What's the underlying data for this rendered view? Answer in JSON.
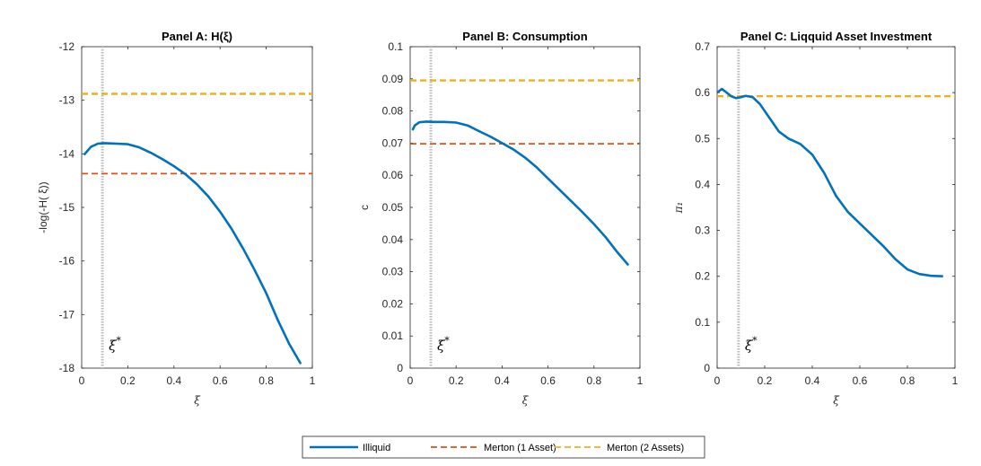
{
  "colors": {
    "illiquid": "#0072BD",
    "merton1": "#D95319",
    "merton2": "#EDB120",
    "marker": "#BDBDBD",
    "axis": "#262626"
  },
  "legend": {
    "position": "bottom-center",
    "entries": [
      {
        "label": "Illiquid",
        "style": "solid",
        "color": "#0072BD"
      },
      {
        "label": "Merton (1 Asset)",
        "style": "dashed",
        "color": "#D95319"
      },
      {
        "label": "Merton (2 Assets)",
        "style": "dashed",
        "color": "#EDB120"
      }
    ]
  },
  "chart_data": [
    {
      "type": "line",
      "title": "Panel A: H(ξ)",
      "xlabel": "ξ",
      "ylabel": "-log(-H( ξ))",
      "xlim": [
        0,
        1
      ],
      "ylim": [
        -18,
        -12
      ],
      "xticks": [
        "0",
        "0.2",
        "0.4",
        "0.6",
        "0.8",
        "1"
      ],
      "yticks": [
        "-18",
        "-17",
        "-16",
        "-15",
        "-14",
        "-13",
        "-12"
      ],
      "xi_star": 0.09,
      "xi_star_label": "ξ*",
      "series": [
        {
          "name": "Illiquid",
          "x": [
            0.01,
            0.02,
            0.04,
            0.07,
            0.1,
            0.15,
            0.2,
            0.25,
            0.3,
            0.35,
            0.4,
            0.45,
            0.5,
            0.55,
            0.6,
            0.65,
            0.7,
            0.75,
            0.8,
            0.85,
            0.9,
            0.95
          ],
          "y": [
            -14.02,
            -13.97,
            -13.87,
            -13.81,
            -13.8,
            -13.81,
            -13.82,
            -13.88,
            -13.98,
            -14.1,
            -14.23,
            -14.38,
            -14.57,
            -14.8,
            -15.08,
            -15.4,
            -15.77,
            -16.17,
            -16.6,
            -17.1,
            -17.55,
            -17.92
          ]
        },
        {
          "name": "Merton (1 Asset)",
          "x": [
            0,
            1
          ],
          "y": [
            -14.37,
            -14.37
          ]
        },
        {
          "name": "Merton (2 Assets)",
          "x": [
            0,
            1
          ],
          "y": [
            -12.88,
            -12.88
          ]
        }
      ]
    },
    {
      "type": "line",
      "title": "Panel B: Consumption",
      "xlabel": "ξ",
      "ylabel": "c",
      "xlim": [
        0,
        1
      ],
      "ylim": [
        0,
        0.1
      ],
      "xticks": [
        "0",
        "0.2",
        "0.4",
        "0.6",
        "0.8",
        "1"
      ],
      "yticks": [
        "0",
        "0.01",
        "0.02",
        "0.03",
        "0.04",
        "0.05",
        "0.06",
        "0.07",
        "0.08",
        "0.09",
        "0.1"
      ],
      "xi_star": 0.09,
      "xi_star_label": "ξ*",
      "series": [
        {
          "name": "Illiquid",
          "x": [
            0.01,
            0.02,
            0.04,
            0.07,
            0.1,
            0.15,
            0.2,
            0.25,
            0.3,
            0.35,
            0.4,
            0.45,
            0.5,
            0.55,
            0.6,
            0.65,
            0.7,
            0.75,
            0.8,
            0.85,
            0.9,
            0.95
          ],
          "y": [
            0.074,
            0.0755,
            0.0765,
            0.0767,
            0.0766,
            0.0766,
            0.0764,
            0.0755,
            0.0737,
            0.072,
            0.07,
            0.068,
            0.0655,
            0.0625,
            0.059,
            0.0555,
            0.052,
            0.0485,
            0.0448,
            0.0408,
            0.0362,
            0.032
          ]
        },
        {
          "name": "Merton (1 Asset)",
          "x": [
            0,
            1
          ],
          "y": [
            0.0698,
            0.0698
          ]
        },
        {
          "name": "Merton (2 Assets)",
          "x": [
            0,
            1
          ],
          "y": [
            0.0895,
            0.0895
          ]
        }
      ]
    },
    {
      "type": "line",
      "title": "Panel C: Liqquid Asset Investment",
      "xlabel": "ξ",
      "ylabel": "π₁",
      "xlim": [
        0,
        1
      ],
      "ylim": [
        0,
        0.7
      ],
      "xticks": [
        "0",
        "0.2",
        "0.4",
        "0.6",
        "0.8",
        "1"
      ],
      "yticks": [
        "0",
        "0.1",
        "0.2",
        "0.3",
        "0.4",
        "0.5",
        "0.6",
        "0.7"
      ],
      "xi_star": 0.09,
      "xi_star_label": "ξ*",
      "series": [
        {
          "name": "Illiquid",
          "x": [
            0.0,
            0.02,
            0.04,
            0.06,
            0.08,
            0.1,
            0.12,
            0.15,
            0.18,
            0.22,
            0.26,
            0.3,
            0.35,
            0.4,
            0.45,
            0.5,
            0.55,
            0.6,
            0.65,
            0.7,
            0.75,
            0.8,
            0.85,
            0.9,
            0.95
          ],
          "y": [
            0.6,
            0.608,
            0.6,
            0.592,
            0.588,
            0.59,
            0.593,
            0.59,
            0.575,
            0.545,
            0.515,
            0.5,
            0.488,
            0.465,
            0.425,
            0.375,
            0.34,
            0.315,
            0.29,
            0.265,
            0.237,
            0.215,
            0.205,
            0.201,
            0.2
          ]
        },
        {
          "name": "Merton (2 Assets)",
          "x": [
            0,
            1
          ],
          "y": [
            0.592,
            0.592
          ]
        }
      ]
    }
  ]
}
